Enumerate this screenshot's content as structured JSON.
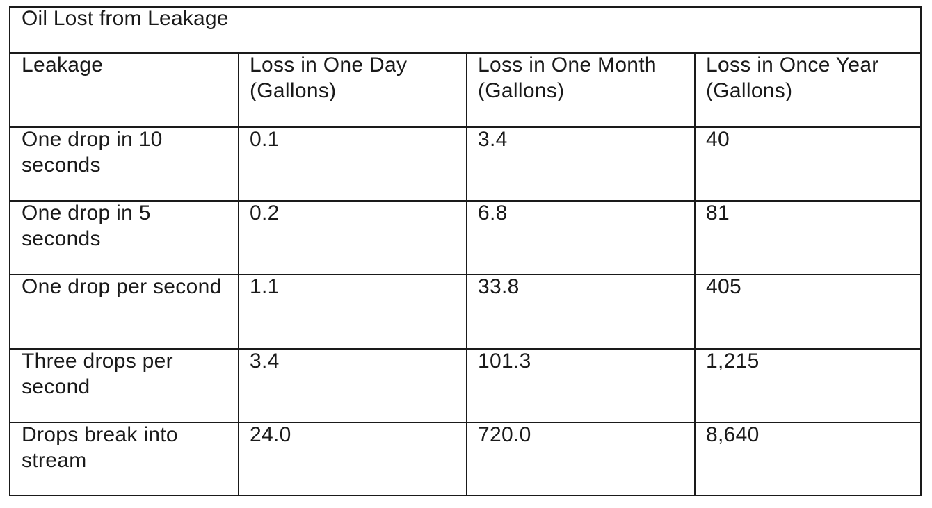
{
  "table": {
    "title": "Oil Lost from Leakage",
    "headers": [
      "Leakage",
      "Loss in One Day (Gallons)",
      "Loss in One Month (Gallons)",
      "Loss in Once Year (Gallons)"
    ],
    "rows": [
      [
        "One drop in 10 seconds",
        "0.1",
        "3.4",
        "40"
      ],
      [
        "One drop in 5 seconds",
        "0.2",
        "6.8",
        "81"
      ],
      [
        "One drop per second",
        "1.1",
        "33.8",
        "405"
      ],
      [
        "Three drops per second",
        "3.4",
        "101.3",
        "1,215"
      ],
      [
        "Drops break into stream",
        "24.0",
        "720.0",
        "8,640"
      ]
    ]
  }
}
